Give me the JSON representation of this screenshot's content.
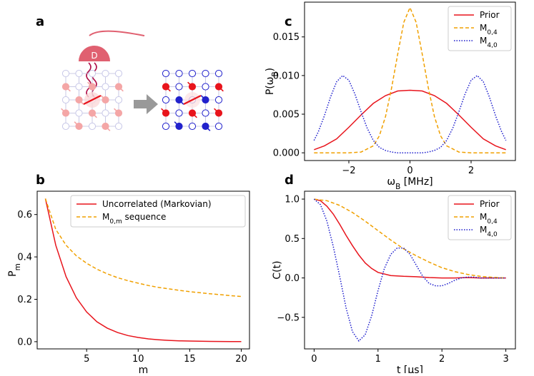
{
  "panels": {
    "a": "a",
    "b": "b",
    "c": "c",
    "d": "d"
  },
  "schematic": {
    "detector_label": "D",
    "colors": {
      "faint_red": "#f4a6a6",
      "red": "#e8141c",
      "blue": "#2222cc",
      "detector": "#e06070",
      "arrow": "#999999",
      "grid": "#bbbbdd"
    }
  },
  "chart_data": [
    {
      "id": "b",
      "type": "line",
      "title": "",
      "xlabel": "m",
      "ylabel": "P_m",
      "xlim": [
        0.2,
        20.8
      ],
      "ylim": [
        -0.034,
        0.71
      ],
      "xticks": [
        5,
        10,
        15,
        20
      ],
      "yticks": [
        0.0,
        0.2,
        0.4,
        0.6
      ],
      "ytick_labels": [
        "0.0",
        "0.2",
        "0.4",
        "0.6"
      ],
      "legend_position": "top-right",
      "series": [
        {
          "name": "Uncorrelated (Markovian)",
          "color": "#e8141c",
          "dash": "solid",
          "x": [
            1,
            2,
            3,
            4,
            5,
            6,
            7,
            8,
            9,
            10,
            11,
            12,
            13,
            14,
            15,
            16,
            17,
            18,
            19,
            20
          ],
          "y": [
            0.675,
            0.455,
            0.307,
            0.207,
            0.14,
            0.094,
            0.064,
            0.043,
            0.029,
            0.02,
            0.013,
            0.009,
            0.006,
            0.004,
            0.003,
            0.002,
            0.0013,
            0.0009,
            0.0006,
            0.0004
          ]
        },
        {
          "name": "M_{0,m} sequence",
          "color": "#f0a000",
          "dash": "dashed",
          "x": [
            1,
            2,
            3,
            4,
            5,
            6,
            7,
            8,
            9,
            10,
            11,
            12,
            13,
            14,
            15,
            16,
            17,
            18,
            19,
            20
          ],
          "y": [
            0.675,
            0.53,
            0.455,
            0.405,
            0.37,
            0.342,
            0.32,
            0.302,
            0.288,
            0.276,
            0.265,
            0.256,
            0.249,
            0.242,
            0.236,
            0.231,
            0.226,
            0.222,
            0.217,
            0.213
          ]
        }
      ]
    },
    {
      "id": "c",
      "type": "line",
      "title": "",
      "xlabel": "ω_B [MHz]",
      "ylabel": "P(ω_B)",
      "xlim": [
        -3.45,
        3.45
      ],
      "ylim": [
        -0.001,
        0.0195
      ],
      "xticks": [
        -2,
        0,
        2
      ],
      "xtick_labels": [
        "−2",
        "0",
        "2"
      ],
      "yticks": [
        0.0,
        0.005,
        0.01,
        0.015
      ],
      "ytick_labels": [
        "0.000",
        "0.005",
        "0.010",
        "0.015"
      ],
      "legend_position": "top-right",
      "series": [
        {
          "name": "Prior",
          "color": "#e8141c",
          "dash": "solid",
          "x": [
            -3.14,
            -2.8,
            -2.4,
            -2.0,
            -1.6,
            -1.2,
            -0.8,
            -0.4,
            0,
            0.4,
            0.8,
            1.2,
            1.6,
            2.0,
            2.4,
            2.8,
            3.14
          ],
          "y": [
            0.0004,
            0.0009,
            0.0018,
            0.0033,
            0.0049,
            0.0064,
            0.0074,
            0.008,
            0.0081,
            0.008,
            0.0074,
            0.0064,
            0.0049,
            0.0033,
            0.0018,
            0.0009,
            0.0004
          ]
        },
        {
          "name": "M_{0,4}",
          "color": "#f0a000",
          "dash": "dashed",
          "x": [
            -3.14,
            -2.0,
            -1.6,
            -1.2,
            -1.0,
            -0.8,
            -0.6,
            -0.4,
            -0.2,
            0,
            0.2,
            0.4,
            0.6,
            0.8,
            1.0,
            1.2,
            1.6,
            2.0,
            3.14
          ],
          "y": [
            0,
            0,
            0.0001,
            0.0009,
            0.0022,
            0.0047,
            0.0084,
            0.0128,
            0.0169,
            0.0188,
            0.0169,
            0.0128,
            0.0084,
            0.0047,
            0.0022,
            0.0009,
            0.0001,
            0,
            0
          ]
        },
        {
          "name": "M_{4,0}",
          "color": "#1a1acc",
          "dash": "dotted",
          "x": [
            -3.14,
            -3.0,
            -2.8,
            -2.6,
            -2.4,
            -2.2,
            -2.0,
            -1.8,
            -1.6,
            -1.4,
            -1.2,
            -1.0,
            -0.8,
            -0.6,
            -0.4,
            0,
            0.4,
            0.6,
            0.8,
            1.0,
            1.2,
            1.4,
            1.6,
            1.8,
            2.0,
            2.2,
            2.4,
            2.6,
            2.8,
            3.0,
            3.14
          ],
          "y": [
            0.0016,
            0.0027,
            0.0048,
            0.0072,
            0.0092,
            0.01,
            0.0094,
            0.0076,
            0.0053,
            0.0032,
            0.0016,
            0.0007,
            0.0003,
            0.0001,
            0,
            0,
            0,
            0.0001,
            0.0003,
            0.0007,
            0.0016,
            0.0032,
            0.0053,
            0.0076,
            0.0094,
            0.01,
            0.0092,
            0.0072,
            0.0048,
            0.0027,
            0.0016
          ]
        }
      ]
    },
    {
      "id": "d",
      "type": "line",
      "title": "",
      "xlabel": "t [μs]",
      "ylabel": "C(t)",
      "xlim": [
        -0.15,
        3.15
      ],
      "ylim": [
        -0.9,
        1.1
      ],
      "xticks": [
        0,
        1,
        2,
        3
      ],
      "yticks": [
        -0.5,
        0.0,
        0.5,
        1.0
      ],
      "ytick_labels": [
        "−0.5",
        "0.0",
        "0.5",
        "1.0"
      ],
      "legend_position": "top-right",
      "series": [
        {
          "name": "Prior",
          "color": "#e8141c",
          "dash": "solid",
          "x": [
            0,
            0.1,
            0.2,
            0.3,
            0.4,
            0.5,
            0.6,
            0.7,
            0.8,
            0.9,
            1.0,
            1.2,
            1.4,
            1.6,
            1.8,
            2.0,
            2.2,
            2.4,
            2.6,
            2.8,
            3.0
          ],
          "y": [
            1.0,
            0.98,
            0.91,
            0.81,
            0.68,
            0.54,
            0.41,
            0.29,
            0.19,
            0.12,
            0.07,
            0.03,
            0.02,
            0.015,
            0.005,
            0.0,
            0.0,
            0.005,
            0.0,
            0.0,
            0.0
          ]
        },
        {
          "name": "M_{0,4}",
          "color": "#f0a000",
          "dash": "dashed",
          "x": [
            0,
            0.2,
            0.4,
            0.6,
            0.8,
            1.0,
            1.2,
            1.4,
            1.6,
            1.8,
            2.0,
            2.2,
            2.4,
            2.6,
            2.8,
            3.0
          ],
          "y": [
            1.0,
            0.98,
            0.92,
            0.83,
            0.72,
            0.6,
            0.48,
            0.37,
            0.28,
            0.2,
            0.13,
            0.08,
            0.045,
            0.02,
            0.008,
            0.0
          ]
        },
        {
          "name": "M_{4,0}",
          "color": "#1a1acc",
          "dash": "dotted",
          "x": [
            0,
            0.1,
            0.2,
            0.3,
            0.4,
            0.5,
            0.6,
            0.7,
            0.8,
            0.9,
            1.0,
            1.1,
            1.2,
            1.3,
            1.4,
            1.5,
            1.6,
            1.7,
            1.8,
            1.9,
            2.0,
            2.1,
            2.2,
            2.3,
            2.4,
            2.5,
            2.6,
            2.8,
            3.0
          ],
          "y": [
            1.0,
            0.93,
            0.72,
            0.4,
            0.02,
            -0.38,
            -0.68,
            -0.8,
            -0.72,
            -0.48,
            -0.16,
            0.12,
            0.3,
            0.38,
            0.38,
            0.3,
            0.16,
            0.02,
            -0.07,
            -0.1,
            -0.1,
            -0.07,
            -0.03,
            0.0,
            0.01,
            0.01,
            0.0,
            0.0,
            0.0
          ]
        }
      ]
    }
  ]
}
